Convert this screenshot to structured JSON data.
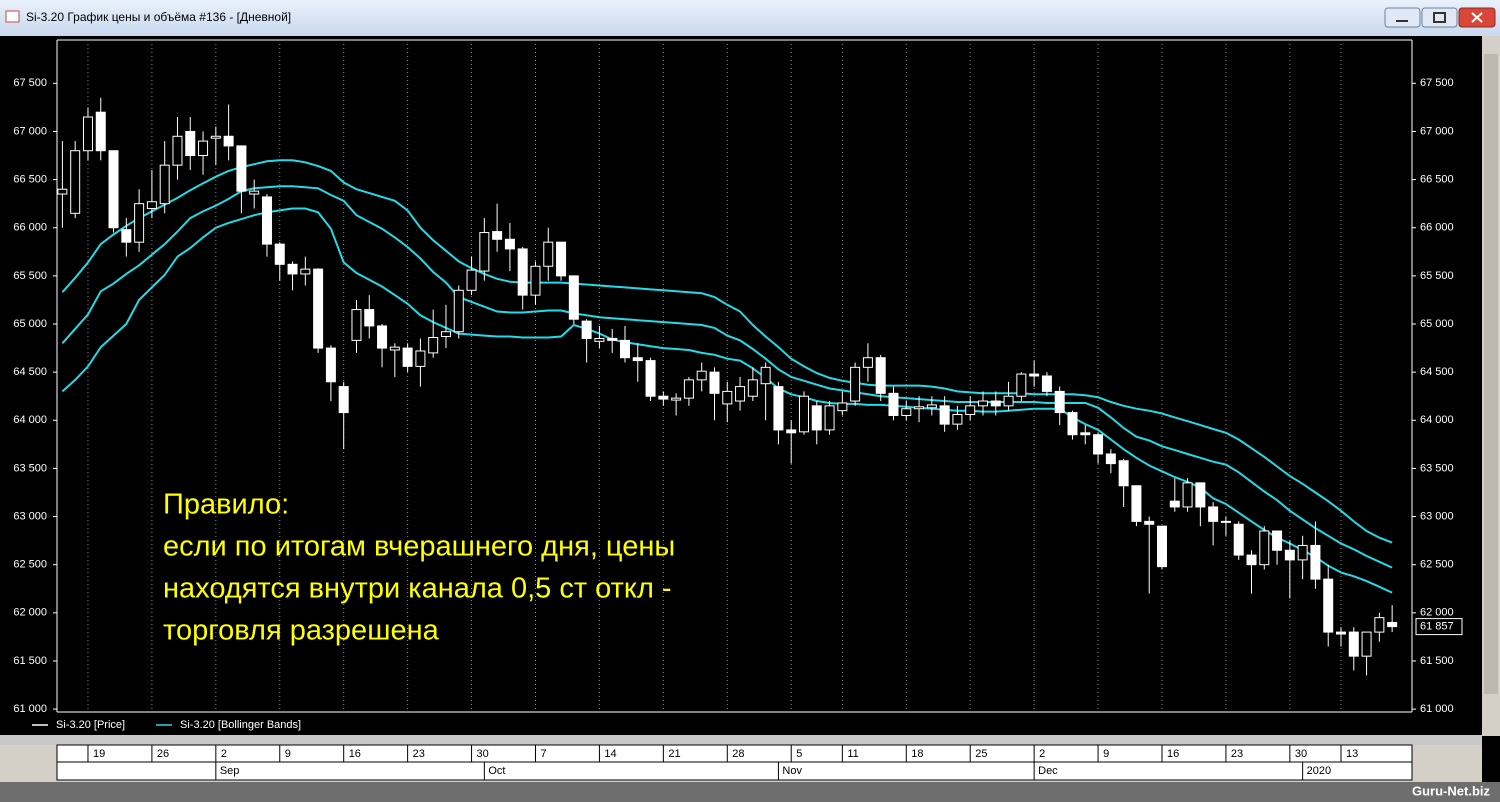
{
  "window_title": "Si-3.20 График цены и объёма #136 - [Дневной]",
  "watermark": "Guru-Net.biz",
  "chart_data": {
    "type": "candlestick",
    "annotation": [
      "Правило:",
      "если по итогам вчерашнего дня, цены",
      "находятся внутри канала 0,5 ст откл -",
      "торговля разрешена"
    ],
    "categories": [
      null,
      null,
      "19",
      null,
      null,
      null,
      null,
      "26",
      null,
      null,
      null,
      null,
      "2",
      null,
      null,
      null,
      null,
      "9",
      null,
      null,
      null,
      null,
      "16",
      null,
      null,
      null,
      null,
      "23",
      null,
      null,
      null,
      null,
      "30",
      null,
      null,
      null,
      null,
      "7",
      null,
      null,
      null,
      null,
      "14",
      null,
      null,
      null,
      null,
      "21",
      null,
      null,
      null,
      null,
      "28",
      null,
      null,
      null,
      null,
      "5",
      null,
      null,
      null,
      "11",
      null,
      null,
      null,
      null,
      "18",
      null,
      null,
      null,
      null,
      "25",
      null,
      null,
      null,
      null,
      "2",
      null,
      null,
      null,
      null,
      "9",
      null,
      null,
      null,
      null,
      "16",
      null,
      null,
      null,
      null,
      "23",
      null,
      null,
      null,
      null,
      "30",
      null,
      null,
      null,
      "13",
      null,
      null,
      null,
      null
    ],
    "months": [
      null,
      null,
      null,
      null,
      null,
      null,
      null,
      null,
      null,
      null,
      null,
      null,
      "Sep",
      null,
      null,
      null,
      null,
      null,
      null,
      null,
      null,
      null,
      null,
      null,
      null,
      null,
      null,
      null,
      null,
      null,
      null,
      null,
      null,
      "Oct",
      null,
      null,
      null,
      null,
      null,
      null,
      null,
      null,
      null,
      null,
      null,
      null,
      null,
      null,
      null,
      null,
      null,
      null,
      null,
      null,
      null,
      null,
      "Nov",
      null,
      null,
      null,
      null,
      null,
      null,
      null,
      null,
      null,
      null,
      null,
      null,
      null,
      null,
      null,
      null,
      null,
      null,
      null,
      "Dec",
      null,
      null,
      null,
      null,
      null,
      null,
      null,
      null,
      null,
      null,
      null,
      null,
      null,
      null,
      null,
      null,
      null,
      null,
      null,
      null,
      "2020",
      null,
      null,
      null,
      null,
      null,
      null,
      null
    ],
    "series": [
      {
        "name": "Si-3.20 [Price]",
        "color": "#ffffff",
        "open": [
          66350,
          66150,
          66800,
          67200,
          66800,
          65980,
          65850,
          66200,
          66250,
          66650,
          67000,
          66750,
          66930,
          66950,
          66850,
          66350,
          66320,
          65830,
          65620,
          65520,
          65570,
          64750,
          64350,
          64830,
          65150,
          64980,
          64730,
          64750,
          64560,
          64700,
          64870,
          64920,
          65350,
          65550,
          65960,
          65880,
          65780,
          65300,
          65600,
          65850,
          65500,
          65030,
          64820,
          64850,
          64830,
          64650,
          64620,
          64250,
          64210,
          64230,
          64420,
          64500,
          64170,
          64200,
          64250,
          64380,
          64350,
          63900,
          63880,
          64150,
          63900,
          64100,
          64200,
          64550,
          64650,
          64280,
          64050,
          64120,
          64130,
          64150,
          63960,
          64060,
          64150,
          64200,
          64150,
          64250,
          64480,
          64460,
          64300,
          64080,
          63870,
          63850,
          63650,
          63580,
          63320,
          62950,
          62900,
          63160,
          63100,
          63350,
          63100,
          62950,
          62920,
          62600,
          62500,
          62850,
          62650,
          62550,
          62700,
          62350,
          61800,
          61800,
          61550,
          61800,
          61900
        ],
        "high": [
          66900,
          66900,
          67250,
          67350,
          66800,
          66100,
          66400,
          66600,
          66900,
          67150,
          67150,
          67000,
          67050,
          67280,
          66850,
          66500,
          66350,
          65850,
          65650,
          65700,
          65580,
          64780,
          64400,
          65250,
          65300,
          65000,
          64800,
          64800,
          64850,
          65150,
          65200,
          65400,
          65700,
          66100,
          66250,
          66050,
          65800,
          65650,
          66000,
          65850,
          65500,
          65050,
          64980,
          64950,
          64980,
          64800,
          64650,
          64300,
          64280,
          64450,
          64600,
          64550,
          64400,
          64450,
          64550,
          64600,
          64400,
          64000,
          64300,
          64200,
          64200,
          64300,
          64600,
          64800,
          64680,
          64350,
          64200,
          64250,
          64250,
          64250,
          64150,
          64250,
          64300,
          64300,
          64400,
          64500,
          64620,
          64500,
          64350,
          64100,
          63950,
          63870,
          63700,
          63600,
          63320,
          63000,
          62900,
          63400,
          63400,
          63350,
          63150,
          63000,
          62950,
          62650,
          62900,
          62850,
          62750,
          62800,
          62950,
          62500,
          61850,
          61850,
          61800,
          62000,
          62080
        ],
        "low": [
          66000,
          66100,
          66700,
          66700,
          65950,
          65700,
          65750,
          66100,
          66150,
          66500,
          66600,
          66550,
          66650,
          66700,
          66150,
          66200,
          65700,
          65450,
          65350,
          65400,
          64700,
          64200,
          63700,
          64700,
          64850,
          64550,
          64450,
          64500,
          64350,
          64650,
          64750,
          64850,
          65300,
          65450,
          65750,
          65550,
          65150,
          65200,
          65450,
          65450,
          65000,
          64600,
          64750,
          64700,
          64600,
          64400,
          64200,
          64150,
          64050,
          64150,
          64300,
          64000,
          63980,
          64100,
          64200,
          64000,
          63750,
          63550,
          63850,
          63750,
          63850,
          64050,
          64150,
          64400,
          64200,
          64000,
          64000,
          63980,
          64050,
          63880,
          63900,
          64000,
          64050,
          64050,
          64100,
          64200,
          64350,
          64250,
          63950,
          63800,
          63750,
          63550,
          63450,
          63100,
          62900,
          62200,
          62450,
          63050,
          63050,
          62900,
          62700,
          62800,
          62550,
          62200,
          62450,
          62500,
          62150,
          62350,
          62250,
          61650,
          61650,
          61400,
          61350,
          61700,
          61800
        ],
        "close": [
          66400,
          66800,
          67150,
          66800,
          66000,
          65850,
          66250,
          66270,
          66650,
          66950,
          66750,
          66900,
          66950,
          66850,
          66380,
          66380,
          65830,
          65620,
          65520,
          65570,
          64750,
          64400,
          64080,
          65150,
          64980,
          64750,
          64760,
          64560,
          64720,
          64860,
          64920,
          65350,
          65560,
          65950,
          65880,
          65780,
          65300,
          65600,
          65850,
          65500,
          65050,
          64850,
          64850,
          64830,
          64650,
          64620,
          64250,
          64220,
          64230,
          64420,
          64510,
          64280,
          64300,
          64350,
          64420,
          64550,
          63900,
          63870,
          64250,
          63900,
          64150,
          64180,
          64550,
          64650,
          64280,
          64050,
          64120,
          64140,
          64160,
          63960,
          64060,
          64150,
          64200,
          64150,
          64250,
          64480,
          64460,
          64300,
          64080,
          63850,
          63850,
          63650,
          63550,
          63320,
          62950,
          62920,
          62480,
          63100,
          63350,
          63100,
          62950,
          62940,
          62600,
          62500,
          62850,
          62650,
          62550,
          62700,
          62350,
          61800,
          61780,
          61550,
          61800,
          61950,
          61857
        ]
      },
      {
        "name": "Si-3.20 [Bollinger Bands]",
        "color": "#22dbe8",
        "upper": [
          65330,
          65480,
          65640,
          65830,
          65930,
          66020,
          66100,
          66170,
          66240,
          66310,
          66390,
          66460,
          66530,
          66590,
          66630,
          66660,
          66690,
          66700,
          66700,
          66680,
          66640,
          66590,
          66470,
          66400,
          66360,
          66320,
          66280,
          66180,
          66000,
          65870,
          65760,
          65650,
          65580,
          65520,
          65470,
          65440,
          65430,
          65430,
          65430,
          65430,
          65420,
          65410,
          65400,
          65390,
          65380,
          65370,
          65360,
          65350,
          65340,
          65330,
          65320,
          65280,
          65200,
          65130,
          64990,
          64870,
          64760,
          64640,
          64560,
          64490,
          64440,
          64410,
          64390,
          64370,
          64360,
          64360,
          64360,
          64360,
          64350,
          64330,
          64300,
          64290,
          64280,
          64280,
          64280,
          64280,
          64270,
          64270,
          64270,
          64270,
          64260,
          64240,
          64190,
          64150,
          64120,
          64100,
          64070,
          64030,
          63990,
          63950,
          63910,
          63870,
          63800,
          63710,
          63620,
          63520,
          63420,
          63340,
          63250,
          63160,
          63060,
          62950,
          62850,
          62780,
          62730
        ],
        "middle": [
          64800,
          64950,
          65100,
          65340,
          65420,
          65520,
          65610,
          65720,
          65830,
          65960,
          66100,
          66170,
          66230,
          66300,
          66380,
          66410,
          66420,
          66430,
          66430,
          66420,
          66410,
          66340,
          66280,
          66130,
          66060,
          65990,
          65900,
          65800,
          65680,
          65540,
          65430,
          65280,
          65230,
          65180,
          65130,
          65120,
          65120,
          65130,
          65140,
          65140,
          65110,
          65090,
          65070,
          65060,
          65050,
          65040,
          65030,
          65020,
          65010,
          65000,
          64990,
          64960,
          64880,
          64830,
          64740,
          64640,
          64530,
          64450,
          64410,
          64370,
          64330,
          64310,
          64290,
          64270,
          64250,
          64240,
          64230,
          64220,
          64210,
          64200,
          64190,
          64190,
          64190,
          64190,
          64190,
          64190,
          64190,
          64180,
          64180,
          64180,
          64180,
          64130,
          64030,
          63920,
          63830,
          63790,
          63730,
          63690,
          63650,
          63610,
          63570,
          63540,
          63460,
          63360,
          63260,
          63170,
          63060,
          62970,
          62880,
          62800,
          62720,
          62660,
          62590,
          62530,
          62470
        ],
        "lower": [
          64300,
          64420,
          64560,
          64760,
          64880,
          65000,
          65250,
          65380,
          65510,
          65700,
          65790,
          65900,
          66000,
          66050,
          66090,
          66130,
          66160,
          66180,
          66200,
          66200,
          66160,
          65990,
          65640,
          65530,
          65460,
          65390,
          65300,
          65210,
          65090,
          65020,
          64960,
          64900,
          64890,
          64880,
          64870,
          64870,
          64860,
          64860,
          64860,
          64870,
          64990,
          64950,
          64900,
          64840,
          64810,
          64790,
          64770,
          64750,
          64740,
          64730,
          64700,
          64680,
          64640,
          64620,
          64540,
          64440,
          64330,
          64270,
          64240,
          64200,
          64180,
          64170,
          64170,
          64160,
          64160,
          64150,
          64140,
          64130,
          64120,
          64110,
          64100,
          64100,
          64090,
          64090,
          64100,
          64110,
          64120,
          64120,
          64120,
          64030,
          63960,
          63900,
          63800,
          63700,
          63610,
          63530,
          63470,
          63410,
          63360,
          63300,
          63190,
          63130,
          63040,
          62950,
          62860,
          62780,
          62720,
          62650,
          62580,
          62490,
          62420,
          62380,
          62330,
          62270,
          62210
        ]
      }
    ],
    "last_price": {
      "value": 61857,
      "label": "61 857"
    },
    "ylim": [
      60970,
      67950
    ],
    "yticks": [
      {
        "value": 61000,
        "label": "61 000"
      },
      {
        "value": 61500,
        "label": "61 500"
      },
      {
        "value": 62000,
        "label": "62 000"
      },
      {
        "value": 62500,
        "label": "62 500"
      },
      {
        "value": 63000,
        "label": "63 000"
      },
      {
        "value": 63500,
        "label": "63 500"
      },
      {
        "value": 64000,
        "label": "64 000"
      },
      {
        "value": 64500,
        "label": "64 500"
      },
      {
        "value": 65000,
        "label": "65 000"
      },
      {
        "value": 65500,
        "label": "65 500"
      },
      {
        "value": 66000,
        "label": "66 000"
      },
      {
        "value": 66500,
        "label": "66 500"
      },
      {
        "value": 67000,
        "label": "67 000"
      },
      {
        "value": 67500,
        "label": "67 500"
      }
    ],
    "grid": true
  }
}
